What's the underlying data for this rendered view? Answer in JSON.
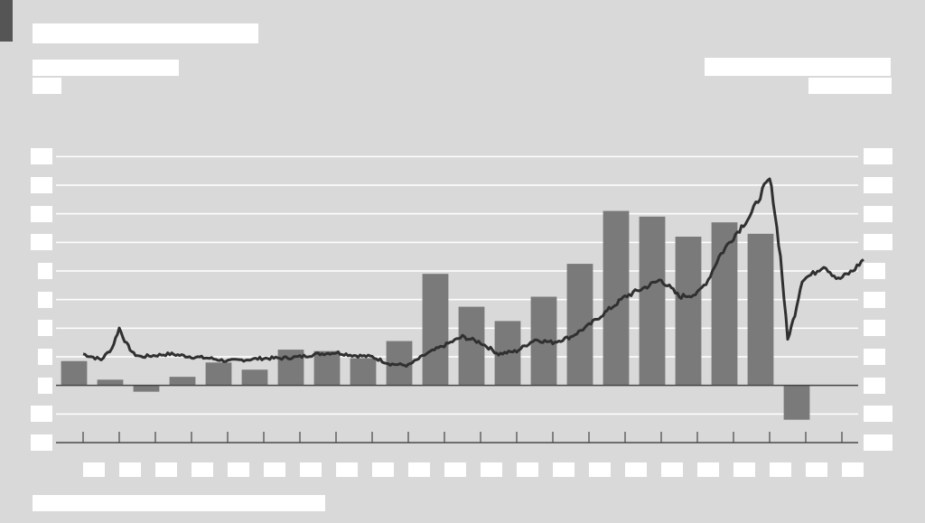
{
  "colors": {
    "background": "#d9d9d9",
    "bar": "#7a7a7a",
    "line": "#303030",
    "grid": "#ffffff",
    "axis": "#444444",
    "corner": "#555555"
  },
  "chart_data": {
    "type": "bar",
    "title": "",
    "subtitle_left": "",
    "subtitle_right": "",
    "ylabel_left": "",
    "ylabel_right": "",
    "source": "",
    "categories": [
      "",
      "",
      "",
      "",
      "",
      "",
      "",
      "",
      "",
      "",
      "",
      "",
      "",
      "",
      "",
      "",
      "",
      "",
      "",
      "",
      "",
      ""
    ],
    "grid": true,
    "ylim": [
      -2,
      10
    ],
    "y_ticks": [
      -2,
      -1,
      0,
      1,
      2,
      3,
      4,
      5,
      6,
      7,
      8
    ],
    "y_tick_labels": [
      "",
      "",
      "",
      "",
      "",
      "",
      "",
      "",
      "",
      "",
      ""
    ],
    "right_ylim": [
      -2,
      10
    ],
    "right_y_ticks": [
      -2,
      -1,
      0,
      1,
      2,
      3,
      4,
      5,
      6,
      7,
      8
    ],
    "right_y_tick_labels": [
      "",
      "",
      "",
      "",
      "",
      "",
      "",
      "",
      "",
      "",
      ""
    ],
    "series": [
      {
        "name": "",
        "type": "bar",
        "values": [
          0.85,
          0.2,
          -0.22,
          0.3,
          0.8,
          0.55,
          1.25,
          1.2,
          0.95,
          1.55,
          3.9,
          2.75,
          2.25,
          3.1,
          4.25,
          6.1,
          5.9,
          5.2,
          5.7,
          5.3,
          -1.2,
          0
        ]
      },
      {
        "name": "",
        "type": "line",
        "axis": "right",
        "x": [
          0.0,
          0.5,
          0.8,
          1.0,
          1.2,
          1.4,
          1.6,
          2.0,
          2.4,
          3.0,
          3.5,
          4.0,
          4.5,
          5.0,
          5.5,
          6.0,
          6.5,
          7.0,
          7.5,
          8.0,
          8.5,
          9.0,
          9.5,
          10.0,
          10.5,
          11.0,
          11.5,
          12.0,
          12.5,
          13.0,
          13.5,
          14.0,
          14.5,
          15.0,
          15.5,
          16.0,
          16.5,
          17.0,
          17.3,
          17.6,
          18.0,
          18.5,
          18.8,
          19.0,
          19.1,
          19.3,
          19.5,
          19.7,
          19.9,
          20.2,
          20.5,
          20.9,
          21.3,
          21.6
        ],
        "values": [
          1.1,
          0.9,
          1.3,
          2.0,
          1.45,
          1.1,
          1.0,
          1.05,
          1.1,
          1.0,
          0.95,
          0.85,
          0.9,
          0.95,
          0.95,
          1.0,
          1.1,
          1.15,
          1.05,
          1.0,
          0.75,
          0.7,
          1.1,
          1.4,
          1.7,
          1.5,
          1.1,
          1.2,
          1.6,
          1.5,
          1.7,
          2.1,
          2.6,
          3.1,
          3.4,
          3.7,
          3.1,
          3.2,
          3.7,
          4.5,
          5.2,
          6.0,
          6.8,
          7.2,
          6.5,
          4.5,
          1.6,
          2.5,
          3.7,
          3.9,
          4.2,
          3.7,
          4.0,
          4.4
        ]
      }
    ]
  }
}
